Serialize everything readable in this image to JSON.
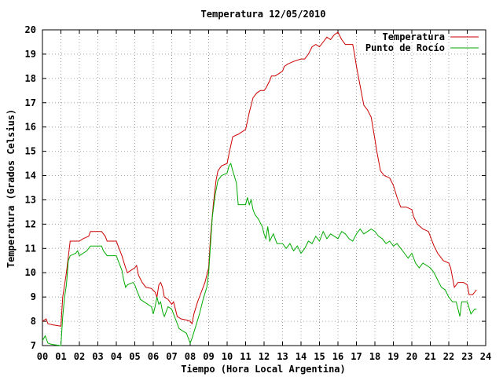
{
  "chart_data": {
    "type": "line",
    "title": "Temperatura 12/05/2010",
    "xlabel": "Tiempo (Hora Local Argentina)",
    "ylabel": "Temperatura (Grados Celsius)",
    "xlim": [
      0,
      24
    ],
    "ylim": [
      7,
      20
    ],
    "x_ticks": [
      "00",
      "01",
      "02",
      "03",
      "04",
      "05",
      "06",
      "07",
      "08",
      "09",
      "10",
      "11",
      "12",
      "13",
      "14",
      "15",
      "16",
      "17",
      "18",
      "19",
      "20",
      "21",
      "22",
      "23",
      "24"
    ],
    "y_ticks": [
      "7",
      "8",
      "9",
      "10",
      "11",
      "12",
      "13",
      "14",
      "15",
      "16",
      "17",
      "18",
      "19",
      "20"
    ],
    "grid": true,
    "legend_position": "top-right",
    "series": [
      {
        "name": "Temperatura",
        "color": "#cc0000",
        "points": [
          [
            0,
            8.0
          ],
          [
            0.2,
            8.1
          ],
          [
            0.3,
            7.9
          ],
          [
            0.6,
            7.85
          ],
          [
            1.0,
            7.8
          ],
          [
            1.1,
            9.0
          ],
          [
            1.3,
            10.0
          ],
          [
            1.5,
            11.3
          ],
          [
            2.0,
            11.3
          ],
          [
            2.2,
            11.4
          ],
          [
            2.5,
            11.5
          ],
          [
            2.6,
            11.7
          ],
          [
            3.2,
            11.7
          ],
          [
            3.4,
            11.5
          ],
          [
            3.5,
            11.3
          ],
          [
            4.0,
            11.3
          ],
          [
            4.1,
            11.1
          ],
          [
            4.3,
            10.7
          ],
          [
            4.5,
            10.2
          ],
          [
            4.6,
            10.0
          ],
          [
            4.8,
            10.1
          ],
          [
            5.0,
            10.2
          ],
          [
            5.1,
            10.3
          ],
          [
            5.2,
            9.9
          ],
          [
            5.4,
            9.6
          ],
          [
            5.6,
            9.4
          ],
          [
            5.9,
            9.35
          ],
          [
            6.1,
            9.2
          ],
          [
            6.2,
            9.0
          ],
          [
            6.3,
            9.5
          ],
          [
            6.4,
            9.6
          ],
          [
            6.5,
            9.4
          ],
          [
            6.6,
            9.0
          ],
          [
            6.8,
            8.9
          ],
          [
            7.0,
            8.7
          ],
          [
            7.1,
            8.8
          ],
          [
            7.3,
            8.2
          ],
          [
            7.5,
            8.1
          ],
          [
            7.8,
            8.05
          ],
          [
            8.0,
            8.0
          ],
          [
            8.1,
            7.9
          ],
          [
            8.2,
            8.3
          ],
          [
            8.4,
            8.8
          ],
          [
            8.6,
            9.2
          ],
          [
            8.8,
            9.6
          ],
          [
            9.0,
            10.2
          ],
          [
            9.1,
            11.5
          ],
          [
            9.25,
            12.8
          ],
          [
            9.4,
            13.8
          ],
          [
            9.5,
            14.2
          ],
          [
            9.7,
            14.4
          ],
          [
            10.0,
            14.5
          ],
          [
            10.1,
            14.9
          ],
          [
            10.3,
            15.6
          ],
          [
            10.6,
            15.7
          ],
          [
            11.0,
            15.9
          ],
          [
            11.2,
            16.6
          ],
          [
            11.4,
            17.2
          ],
          [
            11.6,
            17.4
          ],
          [
            11.8,
            17.5
          ],
          [
            12.0,
            17.5
          ],
          [
            12.1,
            17.6
          ],
          [
            12.3,
            17.9
          ],
          [
            12.4,
            18.1
          ],
          [
            12.6,
            18.1
          ],
          [
            12.8,
            18.2
          ],
          [
            13.0,
            18.3
          ],
          [
            13.1,
            18.5
          ],
          [
            13.3,
            18.6
          ],
          [
            13.6,
            18.7
          ],
          [
            14.0,
            18.8
          ],
          [
            14.2,
            18.8
          ],
          [
            14.4,
            19.0
          ],
          [
            14.6,
            19.3
          ],
          [
            14.8,
            19.4
          ],
          [
            15.0,
            19.3
          ],
          [
            15.2,
            19.5
          ],
          [
            15.4,
            19.7
          ],
          [
            15.6,
            19.6
          ],
          [
            15.8,
            19.8
          ],
          [
            16.0,
            19.9
          ],
          [
            16.2,
            19.6
          ],
          [
            16.4,
            19.4
          ],
          [
            16.8,
            19.4
          ],
          [
            16.9,
            19.0
          ],
          [
            17.0,
            18.5
          ],
          [
            17.2,
            17.7
          ],
          [
            17.4,
            16.9
          ],
          [
            17.6,
            16.7
          ],
          [
            17.8,
            16.4
          ],
          [
            18.0,
            15.5
          ],
          [
            18.1,
            15.0
          ],
          [
            18.3,
            14.2
          ],
          [
            18.5,
            14.0
          ],
          [
            18.8,
            13.9
          ],
          [
            19.0,
            13.6
          ],
          [
            19.2,
            13.1
          ],
          [
            19.4,
            12.7
          ],
          [
            19.7,
            12.7
          ],
          [
            20.0,
            12.6
          ],
          [
            20.1,
            12.3
          ],
          [
            20.3,
            12.0
          ],
          [
            20.6,
            11.8
          ],
          [
            20.9,
            11.7
          ],
          [
            21.0,
            11.5
          ],
          [
            21.2,
            11.1
          ],
          [
            21.4,
            10.8
          ],
          [
            21.5,
            10.7
          ],
          [
            21.7,
            10.5
          ],
          [
            22.0,
            10.4
          ],
          [
            22.1,
            10.2
          ],
          [
            22.3,
            9.4
          ],
          [
            22.5,
            9.6
          ],
          [
            22.8,
            9.6
          ],
          [
            23.0,
            9.5
          ],
          [
            23.1,
            9.1
          ],
          [
            23.3,
            9.1
          ],
          [
            23.4,
            9.2
          ],
          [
            23.5,
            9.3
          ]
        ]
      },
      {
        "name": "Punto de Rocío",
        "color": "#00aa00",
        "points": [
          [
            0,
            7.2
          ],
          [
            0.15,
            7.4
          ],
          [
            0.3,
            7.1
          ],
          [
            0.5,
            7.05
          ],
          [
            1.0,
            7.0
          ],
          [
            1.1,
            8.2
          ],
          [
            1.2,
            9.0
          ],
          [
            1.3,
            9.5
          ],
          [
            1.4,
            10.5
          ],
          [
            1.5,
            10.7
          ],
          [
            1.8,
            10.8
          ],
          [
            1.9,
            10.9
          ],
          [
            2.0,
            10.7
          ],
          [
            2.2,
            10.8
          ],
          [
            2.4,
            10.9
          ],
          [
            2.6,
            11.1
          ],
          [
            3.2,
            11.1
          ],
          [
            3.3,
            10.9
          ],
          [
            3.5,
            10.7
          ],
          [
            4.0,
            10.7
          ],
          [
            4.1,
            10.5
          ],
          [
            4.3,
            10.1
          ],
          [
            4.4,
            9.7
          ],
          [
            4.5,
            9.4
          ],
          [
            4.6,
            9.5
          ],
          [
            4.9,
            9.6
          ],
          [
            5.0,
            9.5
          ],
          [
            5.1,
            9.3
          ],
          [
            5.3,
            8.9
          ],
          [
            5.5,
            8.8
          ],
          [
            5.7,
            8.7
          ],
          [
            5.9,
            8.6
          ],
          [
            6.0,
            8.3
          ],
          [
            6.1,
            8.6
          ],
          [
            6.2,
            9.0
          ],
          [
            6.3,
            8.7
          ],
          [
            6.4,
            8.8
          ],
          [
            6.5,
            8.4
          ],
          [
            6.6,
            8.2
          ],
          [
            6.8,
            8.6
          ],
          [
            7.0,
            8.5
          ],
          [
            7.2,
            8.1
          ],
          [
            7.4,
            7.7
          ],
          [
            7.6,
            7.6
          ],
          [
            7.8,
            7.5
          ],
          [
            8.0,
            7.1
          ],
          [
            8.1,
            7.3
          ],
          [
            8.3,
            7.8
          ],
          [
            8.5,
            8.3
          ],
          [
            8.7,
            8.9
          ],
          [
            8.9,
            9.4
          ],
          [
            9.0,
            10.0
          ],
          [
            9.1,
            11.2
          ],
          [
            9.2,
            12.3
          ],
          [
            9.35,
            13.2
          ],
          [
            9.5,
            13.8
          ],
          [
            9.7,
            14.0
          ],
          [
            10.0,
            14.1
          ],
          [
            10.1,
            14.4
          ],
          [
            10.2,
            14.5
          ],
          [
            10.3,
            14.2
          ],
          [
            10.5,
            13.7
          ],
          [
            10.6,
            12.8
          ],
          [
            11.0,
            12.8
          ],
          [
            11.1,
            13.1
          ],
          [
            11.2,
            12.8
          ],
          [
            11.3,
            13.0
          ],
          [
            11.4,
            12.6
          ],
          [
            11.5,
            12.4
          ],
          [
            11.7,
            12.2
          ],
          [
            11.9,
            11.9
          ],
          [
            12.0,
            11.6
          ],
          [
            12.1,
            11.4
          ],
          [
            12.2,
            11.9
          ],
          [
            12.3,
            11.3
          ],
          [
            12.5,
            11.6
          ],
          [
            12.7,
            11.2
          ],
          [
            13.0,
            11.2
          ],
          [
            13.2,
            11.0
          ],
          [
            13.4,
            11.2
          ],
          [
            13.6,
            10.9
          ],
          [
            13.8,
            11.1
          ],
          [
            14.0,
            10.8
          ],
          [
            14.2,
            11.0
          ],
          [
            14.4,
            11.3
          ],
          [
            14.6,
            11.2
          ],
          [
            14.8,
            11.5
          ],
          [
            15.0,
            11.3
          ],
          [
            15.2,
            11.7
          ],
          [
            15.4,
            11.4
          ],
          [
            15.6,
            11.6
          ],
          [
            15.8,
            11.5
          ],
          [
            16.0,
            11.4
          ],
          [
            16.2,
            11.7
          ],
          [
            16.4,
            11.6
          ],
          [
            16.6,
            11.4
          ],
          [
            16.8,
            11.3
          ],
          [
            17.0,
            11.6
          ],
          [
            17.2,
            11.8
          ],
          [
            17.4,
            11.6
          ],
          [
            17.6,
            11.7
          ],
          [
            17.8,
            11.8
          ],
          [
            18.0,
            11.7
          ],
          [
            18.2,
            11.5
          ],
          [
            18.4,
            11.4
          ],
          [
            18.6,
            11.2
          ],
          [
            18.8,
            11.3
          ],
          [
            19.0,
            11.1
          ],
          [
            19.2,
            11.2
          ],
          [
            19.4,
            11.0
          ],
          [
            19.6,
            10.8
          ],
          [
            19.8,
            10.6
          ],
          [
            20.0,
            10.8
          ],
          [
            20.2,
            10.4
          ],
          [
            20.4,
            10.2
          ],
          [
            20.6,
            10.4
          ],
          [
            20.8,
            10.3
          ],
          [
            21.0,
            10.2
          ],
          [
            21.2,
            10.0
          ],
          [
            21.4,
            9.7
          ],
          [
            21.6,
            9.4
          ],
          [
            21.8,
            9.3
          ],
          [
            22.0,
            9.0
          ],
          [
            22.2,
            8.8
          ],
          [
            22.4,
            8.8
          ],
          [
            22.5,
            8.5
          ],
          [
            22.6,
            8.2
          ],
          [
            22.7,
            8.8
          ],
          [
            23.0,
            8.8
          ],
          [
            23.2,
            8.3
          ],
          [
            23.4,
            8.5
          ],
          [
            23.5,
            8.5
          ]
        ]
      }
    ]
  }
}
